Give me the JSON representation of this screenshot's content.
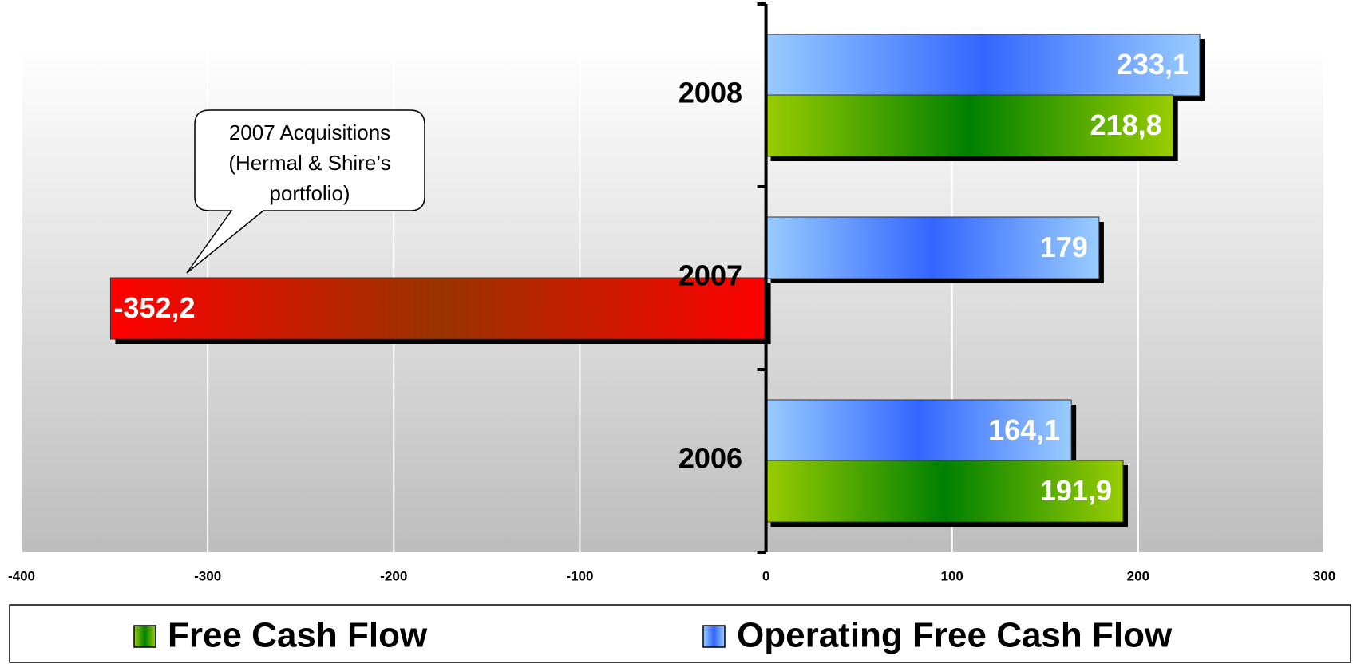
{
  "chart_data": {
    "type": "hbar",
    "categories": [
      "2008",
      "2007",
      "2006"
    ],
    "series": [
      {
        "name": "Operating Free Cash Flow",
        "color": [
          "#99ccff",
          "#3366ff"
        ],
        "values": [
          233.1,
          179,
          164.1
        ],
        "value_labels": [
          "233,1",
          "179",
          "164,1"
        ]
      },
      {
        "name": "Free Cash Flow",
        "color": [
          "#99cc00",
          "#008000"
        ],
        "colors": [
          [
            "#99cc00",
            "#008000"
          ],
          [
            "#ff0000",
            "#993300"
          ],
          [
            "#99cc00",
            "#008000"
          ]
        ],
        "values": [
          218.8,
          -352.2,
          191.9
        ],
        "value_labels": [
          "218,8",
          "-352,2",
          "191,9"
        ]
      }
    ],
    "legend_order": [
      1,
      0
    ],
    "annotation": [
      "2007 Acquisitions",
      "(Hermal & Shire’s",
      "portfolio)"
    ],
    "xlim": [
      -400,
      300
    ],
    "xticks": [
      -400,
      -300,
      -200,
      -100,
      0,
      100,
      200,
      300
    ],
    "grid": true
  }
}
